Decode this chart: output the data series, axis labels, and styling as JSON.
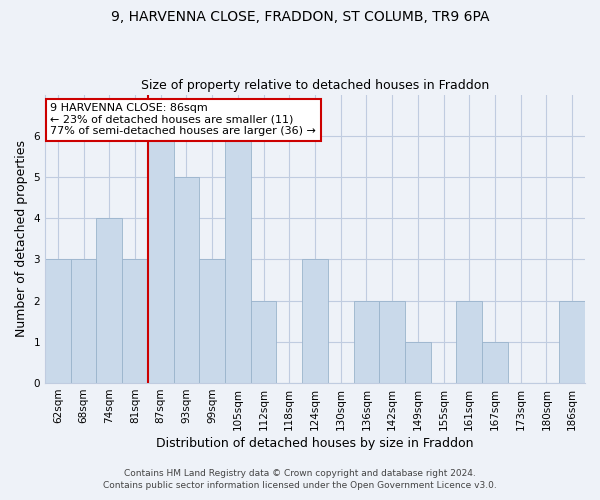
{
  "title1": "9, HARVENNA CLOSE, FRADDON, ST COLUMB, TR9 6PA",
  "title2": "Size of property relative to detached houses in Fraddon",
  "xlabel": "Distribution of detached houses by size in Fraddon",
  "ylabel": "Number of detached properties",
  "categories": [
    "62sqm",
    "68sqm",
    "74sqm",
    "81sqm",
    "87sqm",
    "93sqm",
    "99sqm",
    "105sqm",
    "112sqm",
    "118sqm",
    "124sqm",
    "130sqm",
    "136sqm",
    "142sqm",
    "149sqm",
    "155sqm",
    "161sqm",
    "167sqm",
    "173sqm",
    "180sqm",
    "186sqm"
  ],
  "values": [
    3,
    3,
    4,
    3,
    6,
    5,
    3,
    6,
    2,
    0,
    3,
    0,
    2,
    2,
    1,
    0,
    2,
    1,
    0,
    0,
    2
  ],
  "bar_color": "#c9d9ea",
  "bar_edge_color": "#9ab4cc",
  "highlight_index": 4,
  "highlight_line_color": "#cc0000",
  "annotation_line1": "9 HARVENNA CLOSE: 86sqm",
  "annotation_line2": "← 23% of detached houses are smaller (11)",
  "annotation_line3": "77% of semi-detached houses are larger (36) →",
  "annotation_box_color": "#ffffff",
  "annotation_box_edge_color": "#cc0000",
  "ylim": [
    0,
    7
  ],
  "yticks": [
    0,
    1,
    2,
    3,
    4,
    5,
    6
  ],
  "footer1": "Contains HM Land Registry data © Crown copyright and database right 2024.",
  "footer2": "Contains public sector information licensed under the Open Government Licence v3.0.",
  "background_color": "#eef2f8",
  "plot_background_color": "#eef2f8",
  "grid_color": "#c0cce0",
  "title1_fontsize": 10,
  "title2_fontsize": 9,
  "axis_label_fontsize": 9,
  "tick_fontsize": 7.5,
  "annotation_fontsize": 8,
  "footer_fontsize": 6.5
}
